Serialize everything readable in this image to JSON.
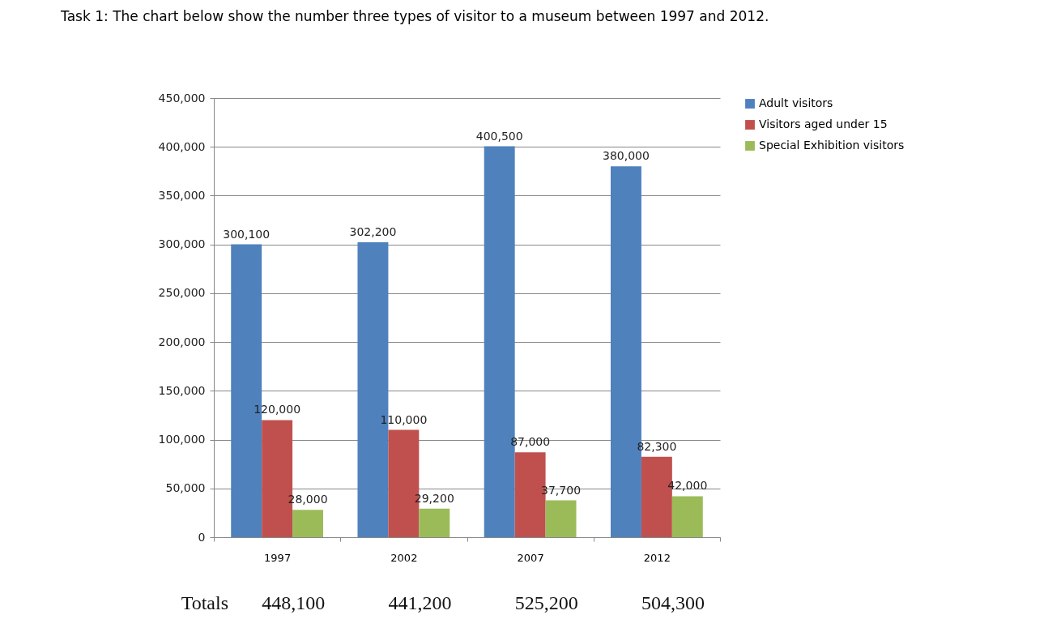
{
  "chart_data": {
    "type": "bar",
    "title": "Task 1: The chart below show the number three types of visitor to a museum between 1997 and 2012.",
    "categories": [
      "1997",
      "2002",
      "2007",
      "2012"
    ],
    "series": [
      {
        "name": "Adult visitors",
        "color": "#4f81bd",
        "values": [
          300100,
          302200,
          400500,
          380000
        ],
        "value_labels": [
          "300,100",
          "302,200",
          "400,500",
          "380,000"
        ]
      },
      {
        "name": "Visitors aged under 15",
        "color": "#c0504d",
        "values": [
          120000,
          110000,
          87000,
          82300
        ],
        "value_labels": [
          "120,000",
          "110,000",
          "87,000",
          "82,300"
        ]
      },
      {
        "name": "Special Exhibition visitors",
        "color": "#9bbb59",
        "values": [
          28000,
          29200,
          37700,
          42000
        ],
        "value_labels": [
          "28,000",
          "29,200",
          "37,700",
          "42,000"
        ]
      }
    ],
    "ylim": [
      0,
      450000
    ],
    "yticks": [
      0,
      {
        "value": 50000,
        "label": "50,000"
      },
      {
        "value": 100000,
        "label": "100,000"
      },
      {
        "value": 150000,
        "label": "150,000"
      },
      {
        "value": 200000,
        "label": "200,000"
      },
      {
        "value": 250000,
        "label": "250,000"
      },
      {
        "value": 300000,
        "label": "300,000"
      },
      {
        "value": 350000,
        "label": "350,000"
      },
      {
        "value": 400000,
        "label": "400,000"
      },
      {
        "value": 450000,
        "label": "450,000"
      }
    ],
    "grid": "y",
    "legend": "right",
    "annotations": [
      "Totals",
      "448,100",
      "441,200",
      "525,200",
      "504,300"
    ]
  }
}
